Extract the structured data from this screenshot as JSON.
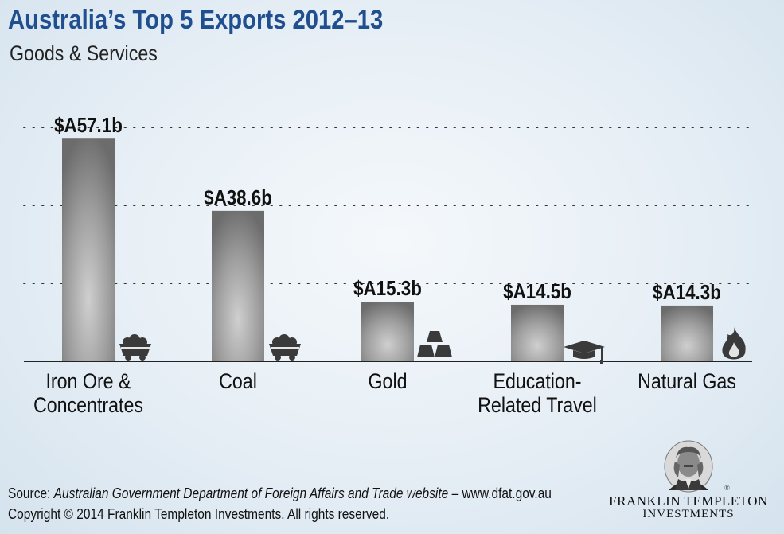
{
  "chart_data": {
    "type": "bar",
    "title": "Australia’s Top 5 Exports 2012–13",
    "subtitle": "Goods & Services",
    "categories": [
      [
        "Iron Ore &",
        "Concentrates"
      ],
      [
        "Coal"
      ],
      [
        "Gold"
      ],
      [
        "Education-",
        "Related Travel"
      ],
      [
        "Natural Gas"
      ]
    ],
    "values": [
      57.1,
      38.6,
      15.3,
      14.5,
      14.3
    ],
    "value_labels": [
      "$A57.1b",
      "$A38.6b",
      "$A15.3b",
      "$A14.5b",
      "$A14.3b"
    ],
    "icons": [
      "mine-cart-icon",
      "coal-cart-icon",
      "gold-bars-icon",
      "graduation-cap-icon",
      "flame-icon"
    ],
    "ylim": [
      0,
      60
    ],
    "gridlines": [
      20,
      40,
      60
    ],
    "grid": "dotted",
    "legend": "none",
    "colors": {
      "bar_edge": "#6f6f6f",
      "bar_center": "#c9c9c9",
      "icon": "#3a3a3a",
      "title": "#1f4f8f"
    }
  },
  "footer": {
    "source_prefix": "Source: ",
    "source_italic": "Australian Government Department of Foreign Affairs and Trade website",
    "source_suffix": " – www.dfat.gov.au",
    "copyright": "Copyright © 2014 Franklin Templeton Investments. All rights reserved."
  },
  "logo": {
    "name_line1": "FRANKLIN TEMPLETON",
    "name_line2": "INVESTMENTS",
    "mark": "®",
    "icon": "benjamin-franklin-portrait-icon"
  }
}
